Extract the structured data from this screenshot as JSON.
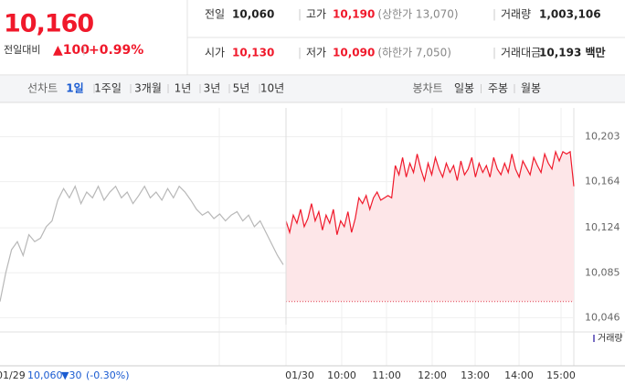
{
  "header": {
    "price": "10,160",
    "change_label": "전일대비",
    "change": "▲100",
    "change_pct": "+0.99%",
    "stats": [
      {
        "label": "전일",
        "value": "10,060"
      },
      {
        "label": "고가",
        "value": "10,190",
        "note": "(상한가 13,070)"
      },
      {
        "label": "거래량",
        "value": "1,003,106"
      },
      {
        "label": "시가",
        "value": "10,130"
      },
      {
        "label": "저가",
        "value": "10,090",
        "note": "(하한가 7,050)"
      },
      {
        "label": "거래대금",
        "value": "10,193 백만"
      }
    ]
  },
  "tabs": {
    "line_label": "선차트",
    "line": [
      "1일",
      "1주일",
      "3개월",
      "1년",
      "3년",
      "5년",
      "10년"
    ],
    "candle_label": "봉차트",
    "candle": [
      "일봉",
      "주봉",
      "월봉"
    ]
  },
  "chart_data": {
    "type": "line",
    "ylim": [
      10040,
      10228
    ],
    "yticks": [
      {
        "value": 10203,
        "label": "10,203"
      },
      {
        "value": 10164,
        "label": "10,164"
      },
      {
        "value": 10124,
        "label": "10,124"
      },
      {
        "value": 10085,
        "label": "10,085"
      },
      {
        "value": 10046,
        "label": "10,046"
      }
    ],
    "baseline": 10060,
    "series": [
      {
        "name": "01/29",
        "color": "#b8b8b8",
        "values": [
          10060,
          10085,
          10105,
          10112,
          10100,
          10118,
          10112,
          10115,
          10125,
          10130,
          10148,
          10158,
          10150,
          10160,
          10145,
          10155,
          10150,
          10160,
          10148,
          10155,
          10160,
          10150,
          10155,
          10145,
          10152,
          10160,
          10150,
          10155,
          10148,
          10158,
          10150,
          10160,
          10155,
          10148,
          10140,
          10135,
          10138,
          10132,
          10136,
          10130,
          10135,
          10138,
          10130,
          10135,
          10125,
          10130,
          10120,
          10110,
          10100,
          10092
        ]
      },
      {
        "name": "01/30",
        "color": "#f0192b",
        "values": [
          10130,
          10120,
          10135,
          10128,
          10140,
          10125,
          10132,
          10145,
          10130,
          10138,
          10122,
          10135,
          10128,
          10140,
          10118,
          10130,
          10125,
          10138,
          10120,
          10132,
          10150,
          10145,
          10152,
          10140,
          10150,
          10155,
          10148,
          10150,
          10152,
          10150,
          10178,
          10170,
          10185,
          10168,
          10180,
          10172,
          10188,
          10175,
          10165,
          10180,
          10170,
          10185,
          10175,
          10168,
          10180,
          10172,
          10178,
          10165,
          10182,
          10170,
          10175,
          10185,
          10168,
          10180,
          10172,
          10178,
          10168,
          10185,
          10175,
          10170,
          10180,
          10172,
          10188,
          10175,
          10168,
          10182,
          10176,
          10170,
          10185,
          10178,
          10172,
          10188,
          10180,
          10175,
          10190,
          10182,
          10190,
          10188,
          10190,
          10160
        ]
      }
    ],
    "x_labels": [
      "10:00",
      "11:00",
      "12:00",
      "13:00",
      "14:00",
      "15:00"
    ],
    "volume_label": "거래량",
    "prev_summary": {
      "price": "10,060",
      "change": "▼30",
      "pct": "(-0.30%)"
    }
  }
}
